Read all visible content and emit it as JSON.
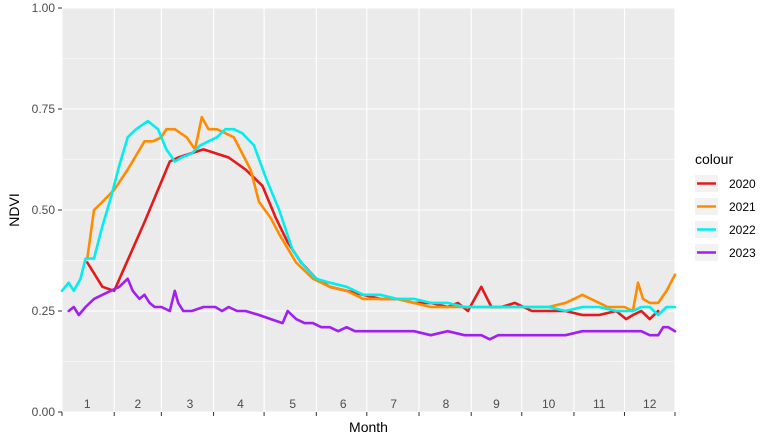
{
  "chart_data": {
    "type": "line",
    "xlabel": "Month",
    "ylabel": "NDVI",
    "xlim": [
      1,
      365
    ],
    "ylim": [
      0,
      1
    ],
    "y_ticks": [
      0,
      0.25,
      0.5,
      0.75,
      1
    ],
    "y_tick_labels": [
      "0.00",
      "0.25",
      "0.50",
      "0.75",
      "1.00"
    ],
    "month_labels": [
      "1",
      "2",
      "3",
      "4",
      "5",
      "6",
      "7",
      "8",
      "9",
      "10",
      "11",
      "12"
    ],
    "month_label_positions": [
      16,
      46,
      77,
      107,
      138,
      168,
      198,
      229,
      259,
      290,
      320,
      350
    ],
    "month_boundaries": [
      1,
      32,
      60,
      91,
      121,
      152,
      182,
      213,
      244,
      274,
      305,
      335,
      365
    ],
    "background": "#ebebeb",
    "grid": true,
    "legend": {
      "title": "colour",
      "position": "right"
    },
    "series": [
      {
        "name": "2020",
        "color": "#e31a1c",
        "x": [
          16,
          25,
          32,
          50,
          65,
          70,
          85,
          100,
          110,
          120,
          128,
          135,
          143,
          152,
          160,
          170,
          180,
          190,
          200,
          210,
          220,
          230,
          236,
          242,
          250,
          256,
          262,
          270,
          280,
          290,
          300,
          310,
          320,
          330,
          336,
          340,
          345,
          350,
          355
        ],
        "y": [
          0.37,
          0.31,
          0.3,
          0.47,
          0.62,
          0.63,
          0.65,
          0.63,
          0.6,
          0.56,
          0.48,
          0.42,
          0.37,
          0.33,
          0.31,
          0.3,
          0.29,
          0.28,
          0.28,
          0.27,
          0.27,
          0.26,
          0.27,
          0.25,
          0.31,
          0.26,
          0.26,
          0.27,
          0.25,
          0.25,
          0.25,
          0.24,
          0.24,
          0.25,
          0.23,
          0.24,
          0.25,
          0.23,
          0.25
        ]
      },
      {
        "name": "2021",
        "color": "#ff8c00",
        "x": [
          16,
          20,
          25,
          32,
          40,
          50,
          55,
          60,
          63,
          68,
          75,
          80,
          84,
          88,
          93,
          98,
          103,
          108,
          113,
          118,
          125,
          130,
          140,
          150,
          160,
          170,
          180,
          190,
          200,
          210,
          220,
          230,
          240,
          250,
          260,
          270,
          280,
          290,
          300,
          305,
          310,
          315,
          320,
          325,
          330,
          335,
          340,
          343,
          346,
          350,
          355,
          360,
          365
        ],
        "y": [
          0.38,
          0.5,
          0.52,
          0.55,
          0.6,
          0.67,
          0.67,
          0.68,
          0.7,
          0.7,
          0.68,
          0.65,
          0.73,
          0.7,
          0.7,
          0.69,
          0.68,
          0.64,
          0.6,
          0.52,
          0.48,
          0.44,
          0.37,
          0.33,
          0.31,
          0.3,
          0.28,
          0.28,
          0.28,
          0.27,
          0.26,
          0.26,
          0.26,
          0.26,
          0.26,
          0.26,
          0.26,
          0.26,
          0.27,
          0.28,
          0.29,
          0.28,
          0.27,
          0.26,
          0.26,
          0.26,
          0.25,
          0.32,
          0.28,
          0.27,
          0.27,
          0.3,
          0.34
        ]
      },
      {
        "name": "2022",
        "color": "#00eeee",
        "x": [
          1,
          5,
          8,
          12,
          15,
          20,
          25,
          30,
          35,
          40,
          45,
          52,
          58,
          63,
          68,
          72,
          78,
          83,
          88,
          93,
          98,
          103,
          108,
          115,
          122,
          130,
          138,
          145,
          152,
          160,
          170,
          180,
          190,
          200,
          210,
          220,
          230,
          240,
          250,
          260,
          270,
          280,
          290,
          300,
          310,
          320,
          330,
          340,
          345,
          350,
          355,
          360,
          365
        ],
        "y": [
          0.3,
          0.32,
          0.3,
          0.33,
          0.38,
          0.38,
          0.46,
          0.53,
          0.61,
          0.68,
          0.7,
          0.72,
          0.7,
          0.65,
          0.62,
          0.63,
          0.64,
          0.66,
          0.67,
          0.68,
          0.7,
          0.7,
          0.69,
          0.66,
          0.58,
          0.5,
          0.4,
          0.36,
          0.33,
          0.32,
          0.31,
          0.29,
          0.29,
          0.28,
          0.28,
          0.27,
          0.27,
          0.26,
          0.26,
          0.26,
          0.26,
          0.26,
          0.26,
          0.25,
          0.26,
          0.26,
          0.25,
          0.25,
          0.26,
          0.26,
          0.24,
          0.26,
          0.26
        ]
      },
      {
        "name": "2023",
        "color": "#a020f0",
        "x": [
          5,
          8,
          11,
          15,
          20,
          25,
          30,
          35,
          40,
          43,
          47,
          50,
          53,
          56,
          60,
          65,
          68,
          70,
          73,
          78,
          85,
          92,
          96,
          100,
          105,
          110,
          118,
          125,
          132,
          135,
          140,
          145,
          150,
          155,
          160,
          165,
          170,
          175,
          180,
          190,
          200,
          210,
          220,
          230,
          240,
          250,
          255,
          260,
          270,
          280,
          290,
          300,
          310,
          320,
          330,
          340,
          345,
          350,
          355,
          358,
          361,
          365
        ],
        "y": [
          0.25,
          0.26,
          0.24,
          0.26,
          0.28,
          0.29,
          0.3,
          0.31,
          0.33,
          0.3,
          0.28,
          0.29,
          0.27,
          0.26,
          0.26,
          0.25,
          0.3,
          0.27,
          0.25,
          0.25,
          0.26,
          0.26,
          0.25,
          0.26,
          0.25,
          0.25,
          0.24,
          0.23,
          0.22,
          0.25,
          0.23,
          0.22,
          0.22,
          0.21,
          0.21,
          0.2,
          0.21,
          0.2,
          0.2,
          0.2,
          0.2,
          0.2,
          0.19,
          0.2,
          0.19,
          0.19,
          0.18,
          0.19,
          0.19,
          0.19,
          0.19,
          0.19,
          0.2,
          0.2,
          0.2,
          0.2,
          0.2,
          0.19,
          0.19,
          0.21,
          0.21,
          0.2
        ]
      }
    ]
  }
}
